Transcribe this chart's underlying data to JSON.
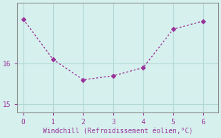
{
  "x": [
    0,
    1,
    2,
    3,
    4,
    5,
    6
  ],
  "y": [
    17.1,
    16.1,
    15.6,
    15.7,
    15.9,
    16.85,
    17.05
  ],
  "line_color": "#993399",
  "marker_color": "#993399",
  "bg_color": "#d6f0ee",
  "grid_color": "#b0d8d4",
  "axis_color": "#888888",
  "xlabel": "Windchill (Refroidissement éolien,°C)",
  "xlabel_color": "#993399",
  "tick_color": "#993399",
  "yticks": [
    15,
    16
  ],
  "xticks": [
    0,
    1,
    2,
    3,
    4,
    5,
    6
  ],
  "xlim": [
    -0.2,
    6.5
  ],
  "ylim": [
    14.8,
    17.5
  ]
}
